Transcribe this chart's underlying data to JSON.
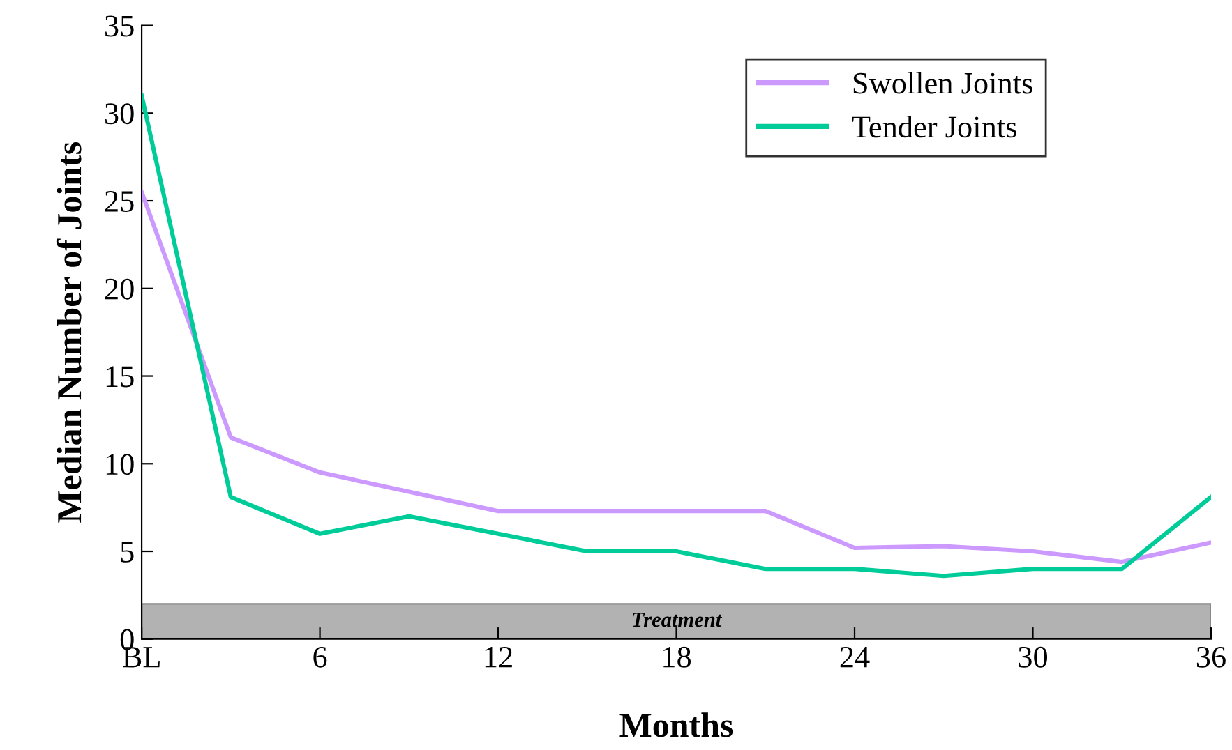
{
  "chart_data": {
    "type": "line",
    "xlabel": "Months",
    "ylabel": "Median Number of Joints",
    "x": [
      0,
      3,
      6,
      9,
      12,
      15,
      18,
      21,
      24,
      27,
      30,
      33,
      36
    ],
    "series": [
      {
        "name": "Swollen Joints",
        "color": "#cc99ff",
        "values": [
          25.5,
          11.5,
          9.5,
          8.4,
          7.3,
          7.3,
          7.3,
          7.3,
          5.2,
          5.3,
          5.0,
          4.4,
          5.5
        ]
      },
      {
        "name": "Tender Joints",
        "color": "#00cc99",
        "values": [
          31,
          8.1,
          6.0,
          7.0,
          6.0,
          5.0,
          5.0,
          4.0,
          4.0,
          3.6,
          4.0,
          4.0,
          8.1
        ]
      }
    ],
    "bands": [
      {
        "axis": "y",
        "from": 0,
        "to": 2,
        "label": "Treatment",
        "color": "#b2b2b2"
      }
    ],
    "xlim": [
      0,
      36
    ],
    "xticks": [
      {
        "value": 0,
        "label": "BL"
      },
      6,
      12,
      18,
      24,
      30,
      36
    ],
    "ylim": [
      0,
      35
    ],
    "yticks": [
      0,
      5,
      10,
      15,
      20,
      25,
      30,
      35
    ],
    "grid": false,
    "legend": "top right",
    "marker": "none",
    "line_style": "solid"
  }
}
